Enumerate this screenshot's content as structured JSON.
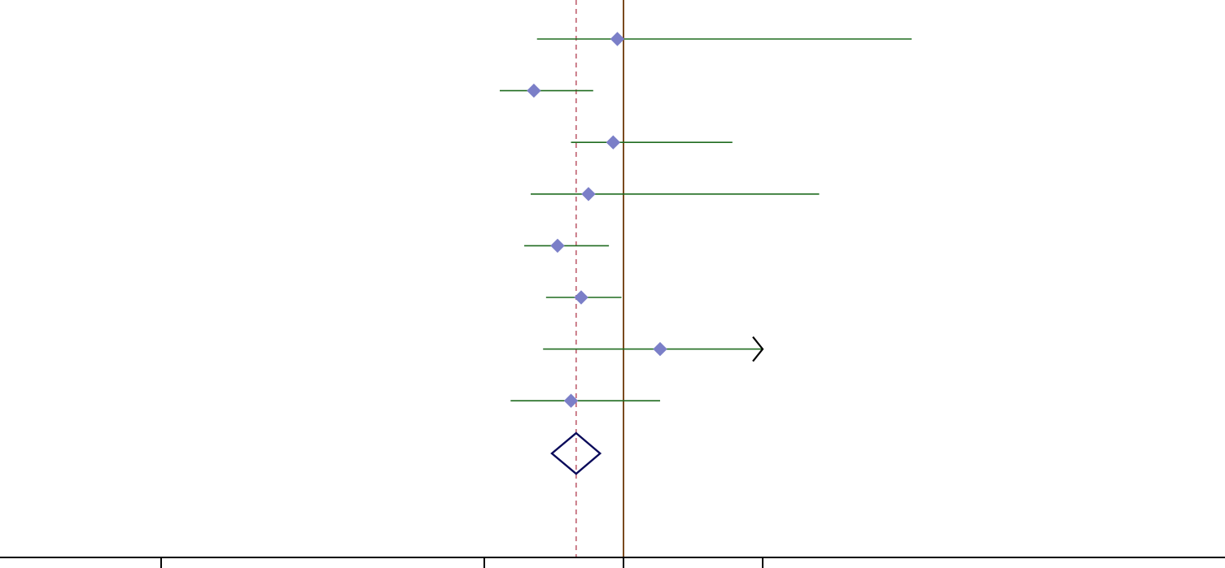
{
  "chart_data": {
    "type": "forest",
    "title": "",
    "xlabel": "",
    "ylabel": "",
    "x_scale": "log",
    "xlim": [
      0.02,
      50
    ],
    "x_ticks": [
      0.1,
      0.5,
      1,
      2
    ],
    "reference_line": 1,
    "pooled_estimate_line": 0.79,
    "studies": [
      {
        "estimate": 0.97,
        "lower": 0.65,
        "upper": 4.2
      },
      {
        "estimate": 0.64,
        "lower": 0.54,
        "upper": 0.86
      },
      {
        "estimate": 0.95,
        "lower": 0.77,
        "upper": 1.72
      },
      {
        "estimate": 0.84,
        "lower": 0.63,
        "upper": 2.65
      },
      {
        "estimate": 0.72,
        "lower": 0.61,
        "upper": 0.93
      },
      {
        "estimate": 0.81,
        "lower": 0.68,
        "upper": 0.99
      },
      {
        "estimate": 1.2,
        "lower": 0.67,
        "upper": 2.2,
        "upper_arrow": true
      },
      {
        "estimate": 0.77,
        "lower": 0.57,
        "upper": 1.2
      }
    ],
    "pooled": {
      "estimate": 0.79,
      "lower": 0.7,
      "upper": 0.89
    },
    "colors": {
      "ci_line": "#1f6b1f",
      "point": "#7b7fc8",
      "reference_line": "#7a4a1e",
      "pooled_line": "#c06070",
      "pooled_diamond": "#0a0a5a",
      "axis": "#000000",
      "arrow": "#000000"
    }
  }
}
